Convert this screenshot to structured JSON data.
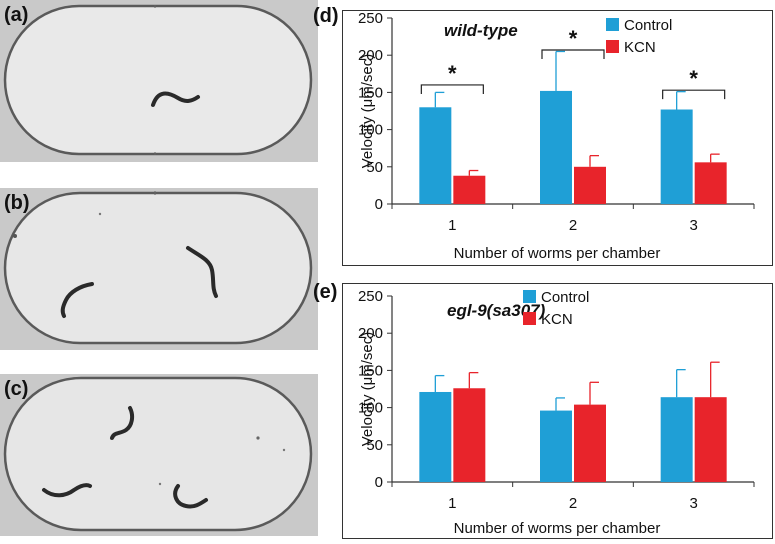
{
  "panels": {
    "a": "(a)",
    "b": "(b)",
    "c": "(c)",
    "d": "(d)",
    "e": "(e)"
  },
  "colors": {
    "control": "#1f9fd6",
    "kcn": "#e8242b",
    "photo_bg": "#c9c9c9",
    "chamber_fill": "#eaeaea",
    "worm": "#2a2a2a"
  },
  "chart_data": [
    {
      "type": "bar",
      "panel": "(d)",
      "title": "wild-type",
      "xlabel": "Number of worms per chamber",
      "ylabel": "Velocity (μm/sec)",
      "categories": [
        "1",
        "2",
        "3"
      ],
      "ylim": [
        0,
        250
      ],
      "yticks": [
        0,
        50,
        100,
        150,
        200,
        250
      ],
      "legend_position": "top-right",
      "series": [
        {
          "name": "Control",
          "values": [
            130,
            152,
            127
          ],
          "errors": [
            20,
            53,
            24
          ]
        },
        {
          "name": "KCN",
          "values": [
            38,
            50,
            56
          ],
          "errors": [
            7,
            15,
            11
          ]
        }
      ],
      "annotations": [
        {
          "category": "1",
          "text": "*",
          "bracket_y": 160
        },
        {
          "category": "2",
          "text": "*",
          "bracket_y": 207
        },
        {
          "category": "3",
          "text": "*",
          "bracket_y": 153
        }
      ]
    },
    {
      "type": "bar",
      "panel": "(e)",
      "title": "egl-9(sa307)",
      "xlabel": "Number of worms per chamber",
      "ylabel": "Velocity (μm/sec)",
      "categories": [
        "1",
        "2",
        "3"
      ],
      "ylim": [
        0,
        250
      ],
      "yticks": [
        0,
        50,
        100,
        150,
        200,
        250
      ],
      "legend_position": "top-center",
      "series": [
        {
          "name": "Control",
          "values": [
            121,
            96,
            114
          ],
          "errors": [
            22,
            17,
            37
          ]
        },
        {
          "name": "KCN",
          "values": [
            126,
            104,
            114
          ],
          "errors": [
            21,
            30,
            47
          ]
        }
      ],
      "annotations": []
    }
  ]
}
